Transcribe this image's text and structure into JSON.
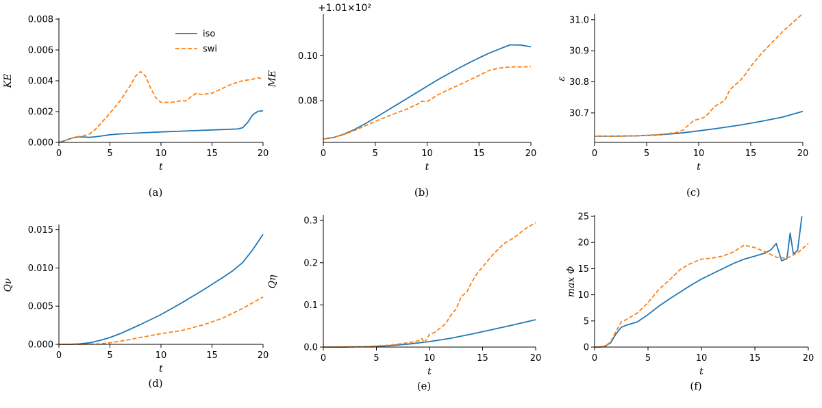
{
  "colors": {
    "iso": "#1f77b4",
    "swi": "#ff7f0e"
  },
  "legend": {
    "location": "upper-center",
    "entries": [
      {
        "series": "iso",
        "style": "solid"
      },
      {
        "series": "swi",
        "style": "dashed"
      }
    ]
  },
  "chart_data": [
    {
      "type": "line",
      "id": "a",
      "caption": "(a)",
      "xlabel": "t",
      "ylabel": "KE",
      "xlim": [
        0,
        20
      ],
      "ylim": [
        0,
        0.008
      ],
      "xticks": [
        0,
        5,
        10,
        15,
        20
      ],
      "xtick_labels": [
        "0",
        "5",
        "10",
        "15",
        "20"
      ],
      "yticks": [
        0,
        0.002,
        0.004,
        0.006,
        0.008
      ],
      "ytick_labels": [
        "0.000",
        "0.002",
        "0.004",
        "0.006",
        "0.008"
      ],
      "series": [
        {
          "name": "iso",
          "x": [
            0,
            0.5,
            1,
            1.5,
            2,
            2.5,
            3,
            3.5,
            4,
            5,
            6,
            8,
            10,
            12,
            14,
            16,
            17.5,
            18,
            18.5,
            19,
            19.5,
            20
          ],
          "y": [
            0,
            0.0001,
            0.00022,
            0.00032,
            0.00036,
            0.00035,
            0.00033,
            0.00036,
            0.0004,
            0.0005,
            0.00055,
            0.00062,
            0.00068,
            0.00073,
            0.00078,
            0.00083,
            0.00087,
            0.00095,
            0.0013,
            0.0018,
            0.00202,
            0.00205
          ]
        },
        {
          "name": "swi",
          "x": [
            0,
            0.5,
            1,
            1.5,
            2,
            2.5,
            3,
            3.5,
            4,
            5,
            6,
            7,
            7.5,
            8,
            8.5,
            9,
            9.5,
            10,
            11,
            12,
            12.5,
            13,
            13.5,
            14,
            15,
            16,
            17,
            18,
            19,
            19.5,
            20
          ],
          "y": [
            0,
            0.0001,
            0.0002,
            0.00032,
            0.00038,
            0.00045,
            0.00055,
            0.0008,
            0.00115,
            0.0019,
            0.0027,
            0.0037,
            0.0043,
            0.0046,
            0.0043,
            0.0035,
            0.0029,
            0.0026,
            0.0026,
            0.0027,
            0.0027,
            0.003,
            0.0032,
            0.0031,
            0.0032,
            0.0035,
            0.0038,
            0.004,
            0.0041,
            0.0042,
            0.0041
          ]
        }
      ]
    },
    {
      "type": "line",
      "id": "b",
      "caption": "(b)",
      "xlabel": "t",
      "ylabel": "ME",
      "offset_text": "+1.01×10²",
      "xlim": [
        0,
        20
      ],
      "ylim": [
        0.0615,
        0.118
      ],
      "xticks": [
        0,
        5,
        10,
        15,
        20
      ],
      "xtick_labels": [
        "0",
        "5",
        "10",
        "15",
        "20"
      ],
      "yticks": [
        0.08,
        0.1
      ],
      "ytick_labels": [
        "0.08",
        "0.10"
      ],
      "series": [
        {
          "name": "iso",
          "x": [
            0,
            1,
            2,
            3,
            4,
            5,
            6,
            7,
            8,
            9,
            10,
            11,
            12,
            13,
            14,
            15,
            16,
            17,
            18,
            19,
            20
          ],
          "y": [
            0.063,
            0.0637,
            0.0652,
            0.0672,
            0.0697,
            0.0724,
            0.0752,
            0.078,
            0.0808,
            0.0836,
            0.0864,
            0.0892,
            0.0918,
            0.0943,
            0.0967,
            0.099,
            0.1011,
            0.103,
            0.1048,
            0.1047,
            0.1039
          ]
        },
        {
          "name": "swi",
          "x": [
            0,
            1,
            2,
            3,
            4,
            5,
            6,
            7,
            8,
            9,
            9.5,
            10,
            11,
            12,
            13,
            14,
            15,
            16,
            17,
            18,
            19,
            20
          ],
          "y": [
            0.063,
            0.0637,
            0.065,
            0.0668,
            0.0688,
            0.0708,
            0.0727,
            0.0745,
            0.0762,
            0.0783,
            0.0798,
            0.0796,
            0.0825,
            0.0848,
            0.0868,
            0.089,
            0.0912,
            0.0935,
            0.0945,
            0.095,
            0.095,
            0.0951
          ]
        }
      ]
    },
    {
      "type": "line",
      "id": "c",
      "caption": "(c)",
      "xlabel": "t",
      "ylabel": "ε",
      "xlim": [
        0,
        20
      ],
      "ylim": [
        30.605,
        31.015
      ],
      "xticks": [
        0,
        5,
        10,
        15,
        20
      ],
      "xtick_labels": [
        "0",
        "5",
        "10",
        "15",
        "20"
      ],
      "yticks": [
        30.7,
        30.8,
        30.9,
        31.0
      ],
      "ytick_labels": [
        "30.7",
        "30.8",
        "30.9",
        "31.0"
      ],
      "series": [
        {
          "name": "iso",
          "x": [
            0,
            2,
            4,
            6,
            8,
            10,
            12,
            14,
            16,
            18,
            20
          ],
          "y": [
            30.625,
            30.625,
            30.626,
            30.629,
            30.634,
            30.642,
            30.651,
            30.661,
            30.673,
            30.686,
            30.705
          ]
        },
        {
          "name": "swi",
          "x": [
            0,
            2,
            4,
            6,
            7,
            8,
            8.5,
            9,
            9.5,
            10,
            10.5,
            11,
            11.5,
            12,
            12.5,
            13,
            13.5,
            14,
            14.5,
            15,
            16,
            17,
            18,
            19,
            20
          ],
          "y": [
            30.625,
            30.625,
            30.626,
            30.63,
            30.633,
            30.638,
            30.645,
            30.66,
            30.675,
            30.68,
            30.685,
            30.7,
            30.72,
            30.73,
            30.74,
            30.775,
            30.79,
            30.805,
            30.825,
            30.85,
            30.89,
            30.925,
            30.96,
            30.99,
            31.02
          ]
        }
      ]
    },
    {
      "type": "line",
      "id": "d",
      "caption": "(d)",
      "xlabel": "t",
      "ylabel": "Qν",
      "xlim": [
        0,
        20
      ],
      "ylim": [
        0,
        0.0155
      ],
      "xticks": [
        0,
        5,
        10,
        15,
        20
      ],
      "xtick_labels": [
        "0",
        "5",
        "10",
        "15",
        "20"
      ],
      "yticks": [
        0,
        0.005,
        0.01,
        0.015
      ],
      "ytick_labels": [
        "0.000",
        "0.005",
        "0.010",
        "0.015"
      ],
      "series": [
        {
          "name": "iso",
          "x": [
            0,
            1,
            2,
            3,
            4,
            5,
            6,
            8,
            10,
            12,
            14,
            16,
            17,
            18,
            19,
            20
          ],
          "y": [
            0,
            0,
            5e-05,
            0.0002,
            0.0005,
            0.0009,
            0.0014,
            0.0026,
            0.0039,
            0.0054,
            0.007,
            0.0087,
            0.0096,
            0.0107,
            0.0124,
            0.0144
          ]
        },
        {
          "name": "swi",
          "x": [
            0,
            2,
            4,
            5,
            6,
            8,
            10,
            12,
            14,
            16,
            18,
            20
          ],
          "y": [
            0,
            0,
            5e-05,
            0.0002,
            0.0004,
            0.0009,
            0.0014,
            0.0018,
            0.0025,
            0.0034,
            0.0047,
            0.0062
          ]
        }
      ]
    },
    {
      "type": "line",
      "id": "e",
      "caption": "(e)",
      "xlabel": "t",
      "ylabel": "Qη",
      "xlim": [
        0,
        20
      ],
      "ylim": [
        0,
        0.31
      ],
      "xticks": [
        0,
        5,
        10,
        15,
        20
      ],
      "xtick_labels": [
        "0",
        "5",
        "10",
        "15",
        "20"
      ],
      "yticks": [
        0,
        0.1,
        0.2,
        0.3
      ],
      "ytick_labels": [
        "0.0",
        "0.1",
        "0.2",
        "0.3"
      ],
      "series": [
        {
          "name": "iso",
          "x": [
            0,
            2,
            4,
            6,
            8,
            10,
            12,
            14,
            16,
            18,
            20
          ],
          "y": [
            0,
            0,
            0.001,
            0.003,
            0.007,
            0.013,
            0.021,
            0.031,
            0.042,
            0.053,
            0.065
          ]
        },
        {
          "name": "swi",
          "x": [
            0,
            4,
            6,
            8,
            9,
            9.3,
            9.5,
            10,
            10.5,
            11,
            11.5,
            12,
            12.5,
            13,
            13.5,
            14,
            14.5,
            15,
            16,
            17,
            18,
            19,
            20
          ],
          "y": [
            0,
            0.001,
            0.004,
            0.01,
            0.015,
            0.02,
            0.01,
            0.03,
            0.035,
            0.045,
            0.055,
            0.075,
            0.09,
            0.12,
            0.13,
            0.155,
            0.175,
            0.19,
            0.22,
            0.245,
            0.26,
            0.28,
            0.295
          ]
        }
      ]
    },
    {
      "type": "line",
      "id": "f",
      "caption": "(f)",
      "xlabel": "t",
      "ylabel": "max Φ",
      "xlim": [
        0,
        20
      ],
      "ylim": [
        0,
        25
      ],
      "xticks": [
        0,
        5,
        10,
        15,
        20
      ],
      "xtick_labels": [
        "0",
        "5",
        "10",
        "15",
        "20"
      ],
      "yticks": [
        0,
        5,
        10,
        15,
        20,
        25
      ],
      "ytick_labels": [
        "0",
        "5",
        "10",
        "15",
        "20",
        "25"
      ],
      "series": [
        {
          "name": "iso",
          "x": [
            0,
            0.5,
            1,
            1.5,
            2,
            2.5,
            3,
            4,
            5,
            6,
            7,
            8,
            9,
            10,
            11,
            12,
            13,
            14,
            15,
            16,
            16.5,
            17,
            17.5,
            18,
            18.3,
            18.6,
            19,
            19.4
          ],
          "y": [
            0,
            0,
            0.2,
            0.8,
            2.5,
            3.8,
            4.2,
            4.8,
            6.2,
            7.8,
            9.2,
            10.5,
            11.8,
            13,
            14,
            15,
            16,
            16.8,
            17.4,
            18,
            18.6,
            19.8,
            16.5,
            16.9,
            21.8,
            17.8,
            18.5,
            25
          ]
        },
        {
          "name": "swi",
          "x": [
            0,
            0.5,
            1,
            1.5,
            2,
            2.5,
            3,
            4,
            5,
            6,
            7,
            8,
            9,
            10,
            11,
            12,
            13,
            14,
            15,
            16,
            17,
            18,
            19,
            20
          ],
          "y": [
            0,
            0,
            0.2,
            1,
            3,
            4.8,
            5.3,
            6.5,
            8.5,
            11,
            12.8,
            14.8,
            16,
            16.8,
            17,
            17.4,
            18.2,
            19.5,
            19,
            18.2,
            17.2,
            17,
            18,
            19.8
          ]
        }
      ]
    }
  ]
}
